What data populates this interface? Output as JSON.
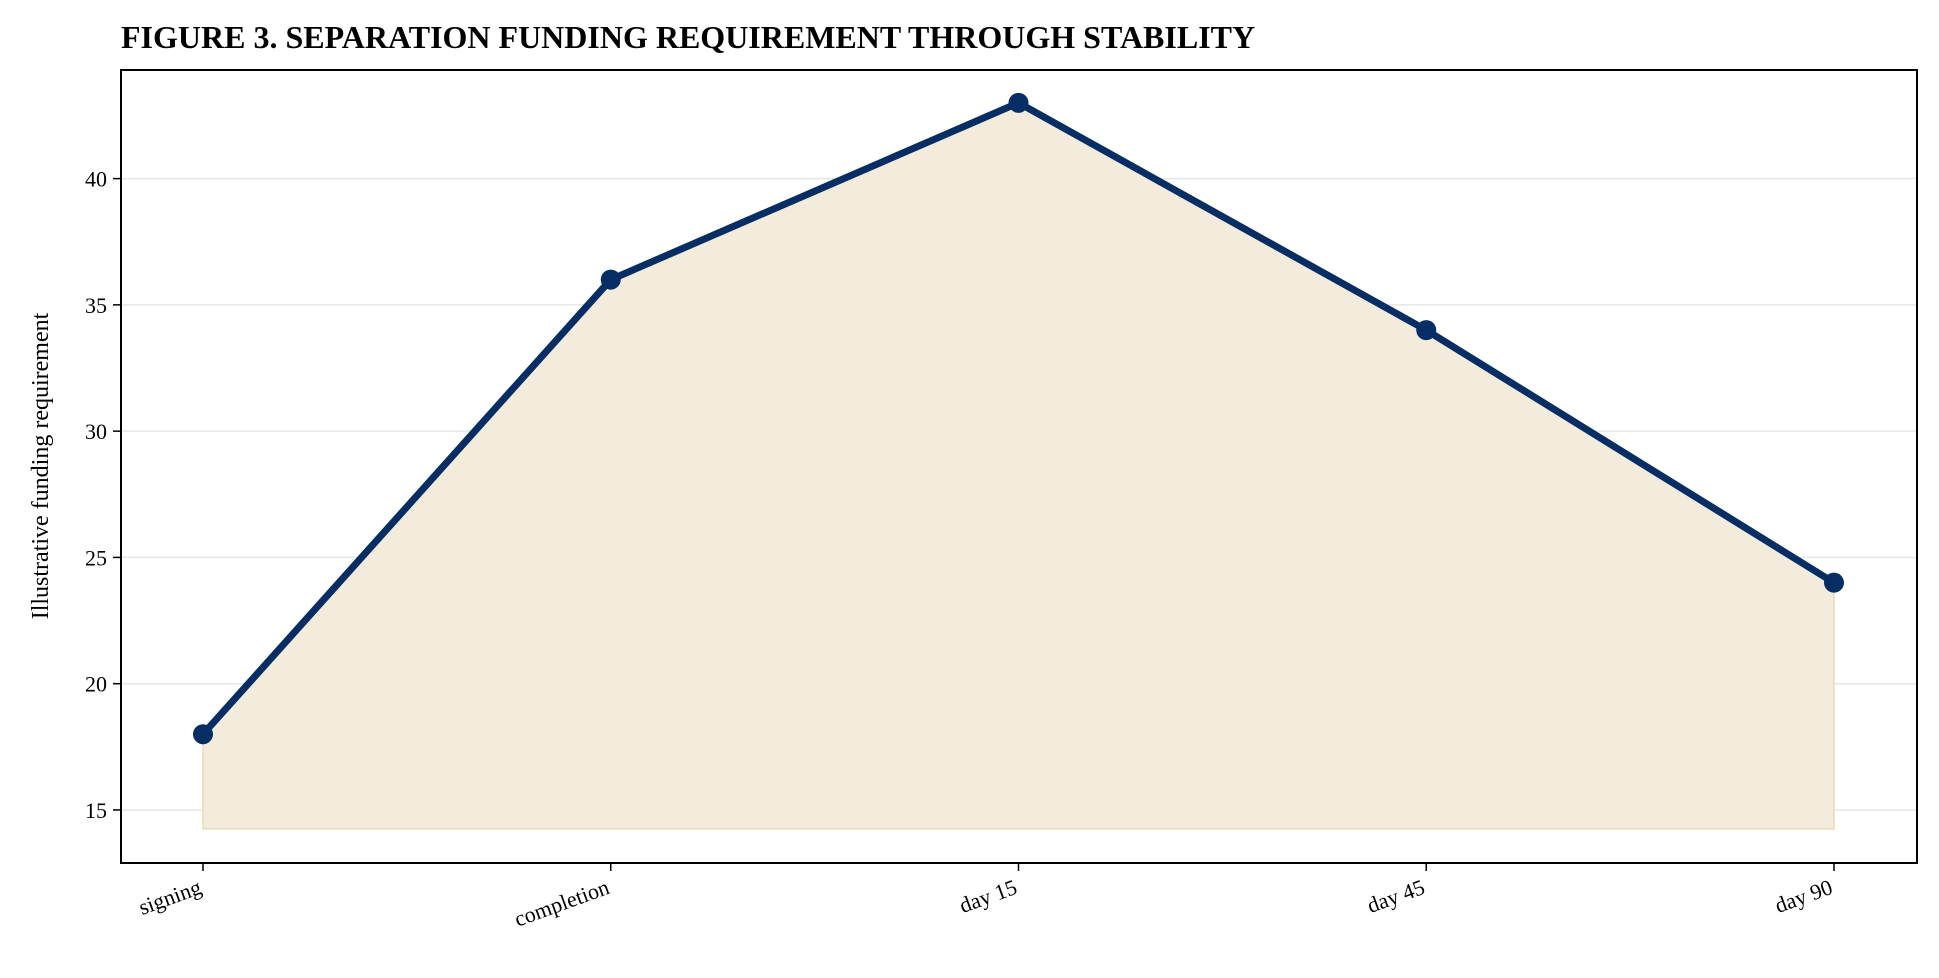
{
  "chart_data": {
    "type": "area",
    "title": "FIGURE 3. SEPARATION FUNDING REQUIREMENT THROUGH STABILITY",
    "xlabel": "",
    "ylabel": "Illustrative funding requirement",
    "categories": [
      "signing",
      "completion",
      "day 15",
      "day 45",
      "day 90"
    ],
    "series": [
      {
        "values": [
          18,
          36,
          43,
          34,
          24
        ]
      }
    ],
    "fill_baseline": 14.25,
    "ylim": [
      12.9,
      44.3
    ],
    "yticks": [
      15,
      20,
      25,
      30,
      35,
      40
    ],
    "grid": "horizontal",
    "legend": "none",
    "x_tick_rotation": "angled",
    "colors": {
      "line": "#062d64",
      "marker": "#062d64",
      "fill": "#f3ecdc",
      "fill_edge": "#ead9b4",
      "grid": "#e6e6e6",
      "axis": "#000000"
    }
  }
}
